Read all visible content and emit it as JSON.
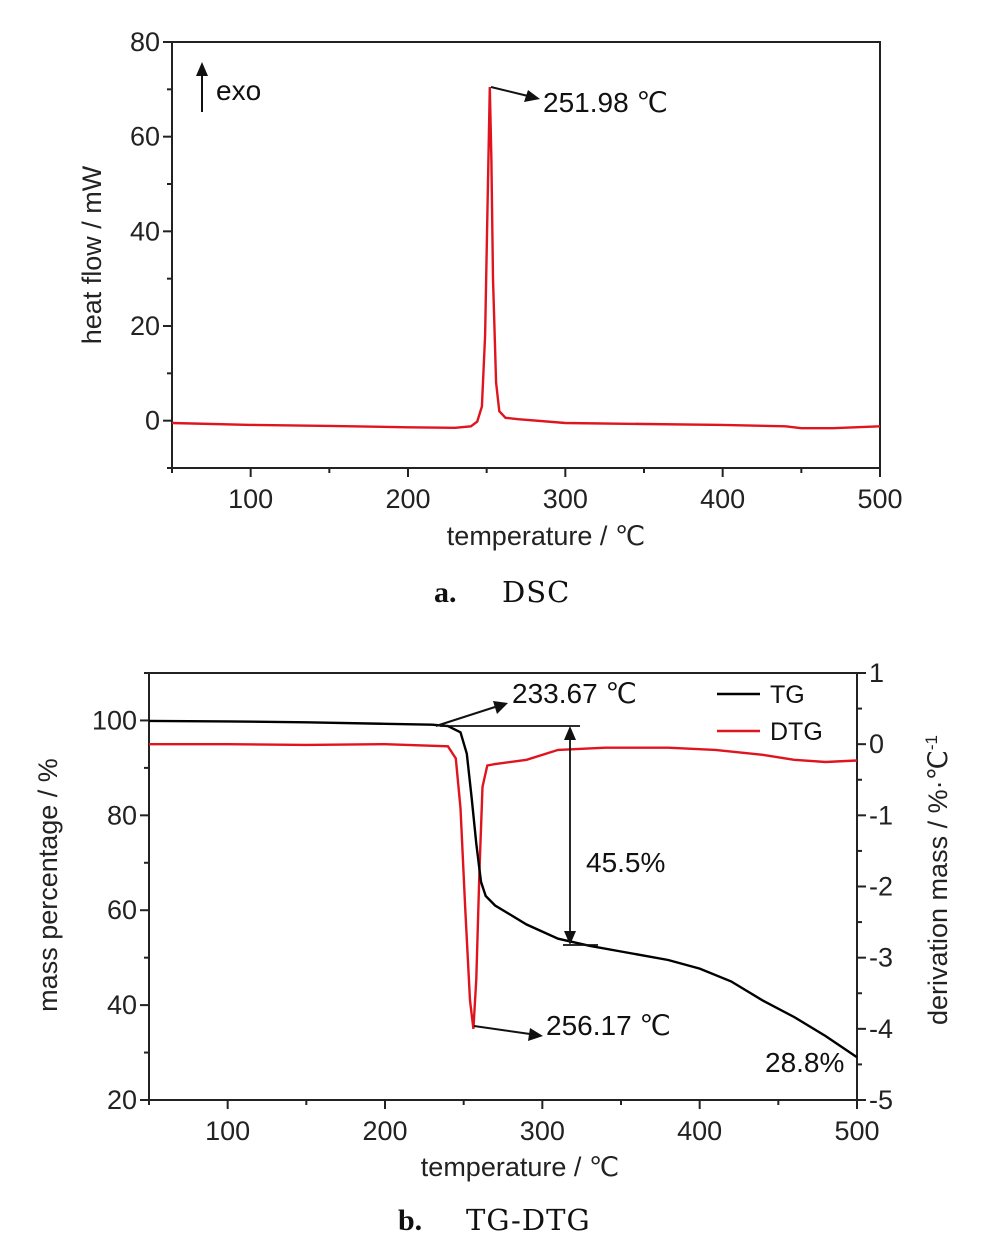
{
  "charts": [
    {
      "caption": {
        "letter": "a.",
        "text": "DSC"
      },
      "xlabel": "temperature / ℃",
      "ylabel": "heat flow / mW",
      "xticks": [
        100,
        200,
        300,
        400,
        500
      ],
      "yticks": [
        0,
        20,
        40,
        60,
        80
      ],
      "annotations": {
        "exo": "exo",
        "peak": "251.98 ℃"
      }
    },
    {
      "caption": {
        "letter": "b.",
        "text": "TG-DTG"
      },
      "xlabel": "temperature / ℃",
      "ylabel": "mass percentage / %",
      "ylabel_right": "derivation mass / %·℃",
      "ylabel_right_sup": "-1",
      "xticks": [
        100,
        200,
        300,
        400,
        500
      ],
      "yticks": [
        20,
        40,
        60,
        80,
        100
      ],
      "yticks_right": [
        -5,
        -4,
        -3,
        -2,
        -1,
        0,
        1
      ],
      "legend": [
        "TG",
        "DTG"
      ],
      "annotations": {
        "onset": "233.67 ℃",
        "dtg_peak": "256.17 ℃",
        "loss": "45.5%",
        "residue": "28.8%"
      }
    }
  ],
  "colors": {
    "tg": "#000000",
    "dtg": "#e0141e",
    "dsc": "#e0141e"
  },
  "chart_data": [
    {
      "type": "line",
      "title": "",
      "xlabel": "temperature / ℃",
      "ylabel": "heat flow / mW",
      "xlim": [
        50,
        500
      ],
      "ylim": [
        -10,
        80
      ],
      "grid": false,
      "series": [
        {
          "points": [
            [
              50,
              -0.5
            ],
            [
              100,
              -0.9
            ],
            [
              150,
              -1.1
            ],
            [
              200,
              -1.4
            ],
            [
              230,
              -1.5
            ],
            [
              240,
              -1.2
            ],
            [
              244,
              -0.2
            ],
            [
              247,
              3
            ],
            [
              249,
              18
            ],
            [
              250.5,
              45
            ],
            [
              251.98,
              70.5
            ],
            [
              253,
              55
            ],
            [
              254,
              30
            ],
            [
              256,
              8
            ],
            [
              258,
              2
            ],
            [
              262,
              0.6
            ],
            [
              270,
              0.3
            ],
            [
              300,
              -0.5
            ],
            [
              350,
              -0.7
            ],
            [
              400,
              -0.9
            ],
            [
              440,
              -1.2
            ],
            [
              450,
              -1.6
            ],
            [
              470,
              -1.6
            ],
            [
              500,
              -1.2
            ]
          ]
        }
      ]
    },
    {
      "type": "line",
      "title": "",
      "xlabel": "temperature / ℃",
      "ylabel": "mass percentage / %",
      "ylabel_right": "derivation mass / %·℃-1",
      "xlim": [
        50,
        500
      ],
      "ylim": [
        20,
        110
      ],
      "ylim_right": [
        -5,
        1
      ],
      "grid": false,
      "legend_position": "top-right",
      "series": [
        {
          "name": "TG",
          "axis": "left",
          "points": [
            [
              50,
              99.9
            ],
            [
              100,
              99.8
            ],
            [
              150,
              99.6
            ],
            [
              200,
              99.3
            ],
            [
              230,
              99.1
            ],
            [
              240,
              98.8
            ],
            [
              248,
              97.5
            ],
            [
              252,
              93
            ],
            [
              255,
              84
            ],
            [
              258,
              74
            ],
            [
              261,
              66
            ],
            [
              264,
              63
            ],
            [
              270,
              61
            ],
            [
              290,
              57
            ],
            [
              310,
              54
            ],
            [
              330,
              52.5
            ],
            [
              350,
              51.3
            ],
            [
              380,
              49.5
            ],
            [
              400,
              47.7
            ],
            [
              420,
              45
            ],
            [
              440,
              41
            ],
            [
              460,
              37.5
            ],
            [
              480,
              33.5
            ],
            [
              500,
              29
            ]
          ]
        },
        {
          "name": "DTG",
          "axis": "right",
          "points": [
            [
              50,
              0.0
            ],
            [
              100,
              0.0
            ],
            [
              150,
              -0.01
            ],
            [
              200,
              0.0
            ],
            [
              240,
              -0.03
            ],
            [
              245,
              -0.2
            ],
            [
              248,
              -0.9
            ],
            [
              251,
              -2.3
            ],
            [
              254,
              -3.6
            ],
            [
              256.17,
              -4.0
            ],
            [
              258,
              -3.3
            ],
            [
              260,
              -1.8
            ],
            [
              262,
              -0.6
            ],
            [
              265,
              -0.3
            ],
            [
              270,
              -0.28
            ],
            [
              290,
              -0.22
            ],
            [
              310,
              -0.08
            ],
            [
              340,
              -0.05
            ],
            [
              380,
              -0.05
            ],
            [
              410,
              -0.08
            ],
            [
              440,
              -0.15
            ],
            [
              460,
              -0.22
            ],
            [
              480,
              -0.25
            ],
            [
              500,
              -0.23
            ]
          ]
        }
      ]
    }
  ]
}
